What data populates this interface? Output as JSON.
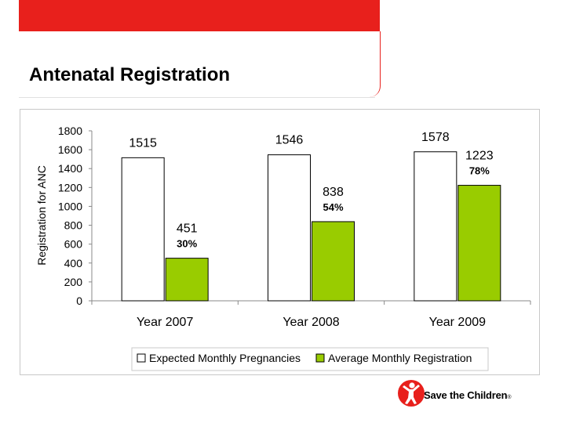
{
  "slide": {
    "title": "Antenatal Registration",
    "brand_text": "Save the Children",
    "brand_mark": "®"
  },
  "colors": {
    "accent_red": "#e8201c",
    "expected_bar": "#ffffff",
    "registration_bar": "#99cc00"
  },
  "icons": {
    "logo": "save-the-children-figure-icon"
  },
  "chart_data": {
    "type": "bar",
    "categories": [
      "Year 2007",
      "Year 2008",
      "Year 2009"
    ],
    "ylabel": "Registration for ANC",
    "xlabel": "",
    "ylim": [
      0,
      1800
    ],
    "yticks": [
      0,
      200,
      400,
      600,
      800,
      1000,
      1200,
      1400,
      1600,
      1800
    ],
    "grid": false,
    "legend_position": "bottom",
    "series": [
      {
        "name": "Expected Monthly Pregnancies",
        "color": "#ffffff",
        "values": [
          1515,
          1546,
          1578
        ],
        "labels": [
          "1515",
          "1546",
          "1578"
        ]
      },
      {
        "name": "Average Monthly Registration",
        "color": "#99cc00",
        "values": [
          451,
          838,
          1223
        ],
        "labels": [
          "451",
          "838",
          "1223"
        ],
        "percent_labels": [
          "30%",
          "54%",
          "78%"
        ]
      }
    ]
  }
}
